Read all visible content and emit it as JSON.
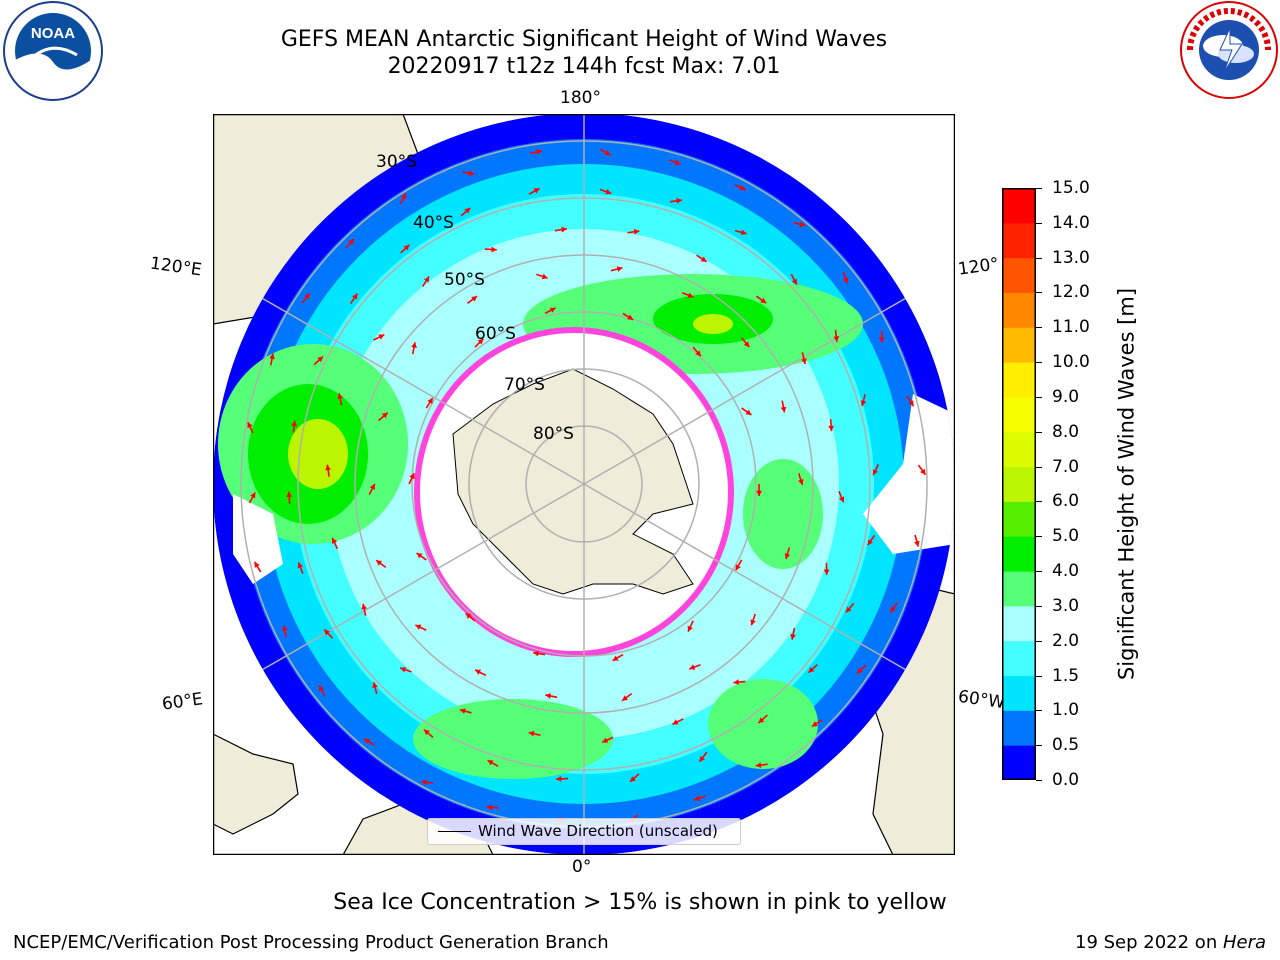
{
  "header": {
    "line1": "GEFS MEAN Antarctic Significant Height of Wind Waves",
    "line2": "20220917 t12z 144h fcst   Max: 7.01"
  },
  "logos": {
    "left": "NOAA",
    "right": "NATIONAL WEATHER SERVICE"
  },
  "map_labels": {
    "longitudes": {
      "top": "180°",
      "bottom": "0°",
      "upper_left": "120°E",
      "upper_right": "120°",
      "lower_left": "60°E",
      "lower_right": "60°W"
    },
    "latitudes": [
      "30°S",
      "40°S",
      "50°S",
      "60°S",
      "70°S",
      "80°S"
    ]
  },
  "colorbar": {
    "label": "Significant Height of Wind Waves [m]",
    "ticks": [
      "0.0",
      "0.5",
      "1.0",
      "1.5",
      "2.0",
      "3.0",
      "4.0",
      "5.0",
      "6.0",
      "7.0",
      "8.0",
      "9.0",
      "10.0",
      "11.0",
      "12.0",
      "13.0",
      "14.0",
      "15.0"
    ],
    "colors": [
      "#0000ff",
      "#0077ff",
      "#00e5ff",
      "#44ffff",
      "#aaffff",
      "#55ff77",
      "#00ee00",
      "#55ee00",
      "#bbf500",
      "#dcfc00",
      "#f5ff00",
      "#ffee00",
      "#ffbb00",
      "#ff8800",
      "#ff5500",
      "#ff2200",
      "#ff0000"
    ]
  },
  "legend": {
    "label": "Wind Wave Direction (unscaled)"
  },
  "notes": {
    "ice": "Sea Ice Concentration > 15% is shown in pink to yellow"
  },
  "footer": {
    "branch": "NCEP/EMC/Verification Post Processing Product Generation Branch",
    "date": "19 Sep 2022 on ",
    "host": "Hera"
  },
  "colors": {
    "land": "#efedd9",
    "ice_edge": "#ff44dd",
    "arrow": "#ff0000",
    "grid": "#b0b0b0"
  }
}
